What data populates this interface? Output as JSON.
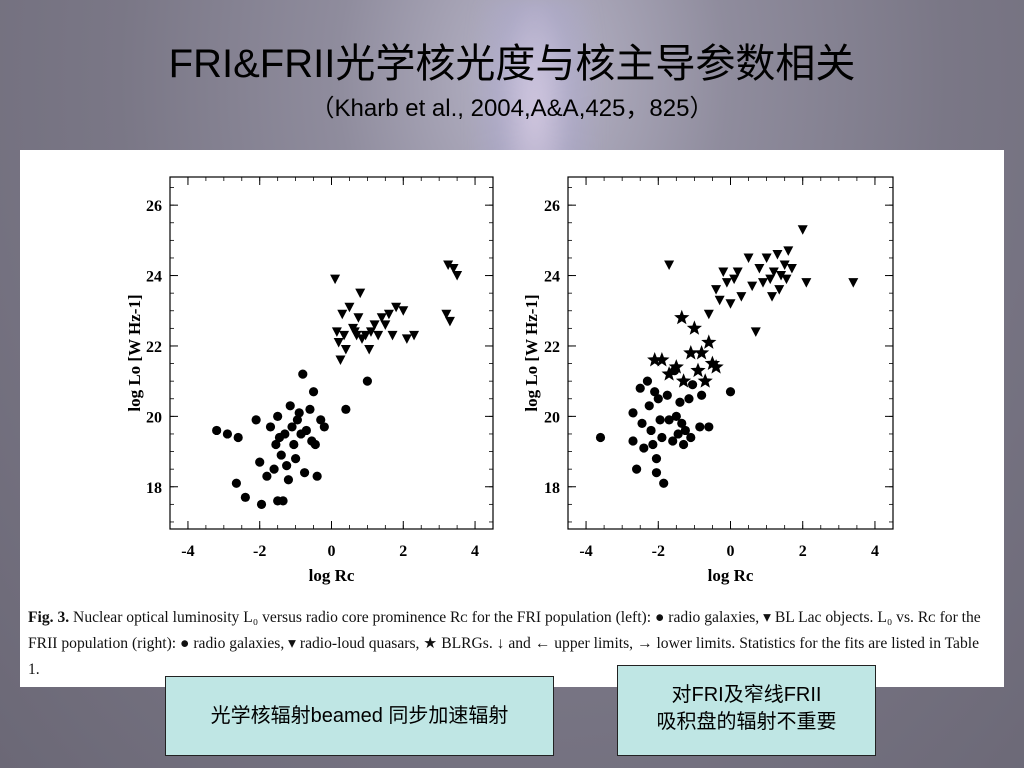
{
  "slide": {
    "title": "FRI&FRII光学核光度与核主导参数相关",
    "subtitle": "（Kharb et al., 2004,A&A,425，825）"
  },
  "caption": {
    "label": "Fig. 3.",
    "text": " Nuclear optical luminosity L₀ versus radio core prominence Rᴄ for the FRI population (left): ● radio galaxies, ▾ BL Lac objects. L₀ vs. Rᴄ for the FRII population (right): ● radio galaxies, ▾ radio-loud quasars, ★ BLRGs. ↓ and ← upper limits, → lower limits. Statistics for the fits are listed in Table 1."
  },
  "notes": {
    "left": "光学核辐射beamed 同步加速辐射",
    "right_line1": "对FRI及窄线FRII",
    "right_line2": "吸积盘的辐射不重要"
  },
  "chart_data": [
    {
      "type": "scatter",
      "xlabel": "log Rc",
      "ylabel": "log Lo [W Hz-1]",
      "xlim": [
        -4.5,
        4.5
      ],
      "ylim": [
        16.8,
        26.8
      ],
      "xticks": [
        "-4",
        "-2",
        "0",
        "2",
        "4"
      ],
      "yticks": [
        "18",
        "20",
        "22",
        "24",
        "26"
      ],
      "series": [
        {
          "marker": "circle",
          "points": [
            [
              -3.2,
              19.6
            ],
            [
              -2.9,
              19.5
            ],
            [
              -2.6,
              19.4
            ],
            [
              -2.65,
              18.1
            ],
            [
              -2.4,
              17.7
            ],
            [
              -2.1,
              19.9
            ],
            [
              -2,
              18.7
            ],
            [
              -1.95,
              17.5
            ],
            [
              -1.8,
              18.3
            ],
            [
              -1.7,
              19.7
            ],
            [
              -1.6,
              18.5
            ],
            [
              -1.55,
              19.2
            ],
            [
              -1.5,
              17.6
            ],
            [
              -1.5,
              20
            ],
            [
              -1.45,
              19.4
            ],
            [
              -1.4,
              18.9
            ],
            [
              -1.35,
              17.6
            ],
            [
              -1.3,
              19.5
            ],
            [
              -1.25,
              18.6
            ],
            [
              -1.2,
              18.2
            ],
            [
              -1.15,
              20.3
            ],
            [
              -1.1,
              19.7
            ],
            [
              -1.05,
              19.2
            ],
            [
              -1,
              18.8
            ],
            [
              -0.95,
              19.9
            ],
            [
              -0.9,
              20.1
            ],
            [
              -0.85,
              19.5
            ],
            [
              -0.8,
              21.2
            ],
            [
              -0.75,
              18.4
            ],
            [
              -0.7,
              19.6
            ],
            [
              -0.6,
              20.2
            ],
            [
              -0.55,
              19.3
            ],
            [
              -0.5,
              20.7
            ],
            [
              -0.45,
              19.2
            ],
            [
              -0.4,
              18.3
            ],
            [
              -0.3,
              19.9
            ],
            [
              -0.2,
              19.7
            ],
            [
              0.4,
              20.2
            ],
            [
              1,
              21
            ]
          ]
        },
        {
          "marker": "triangle-down",
          "points": [
            [
              0.1,
              23.9
            ],
            [
              0.15,
              22.4
            ],
            [
              0.2,
              22.1
            ],
            [
              0.25,
              21.6
            ],
            [
              0.3,
              22.9
            ],
            [
              0.35,
              22.3
            ],
            [
              0.4,
              21.9
            ],
            [
              0.5,
              23.1
            ],
            [
              0.6,
              22.5
            ],
            [
              0.65,
              22.4
            ],
            [
              0.7,
              22.3
            ],
            [
              0.75,
              22.8
            ],
            [
              0.8,
              23.5
            ],
            [
              0.85,
              22.2
            ],
            [
              0.95,
              22.3
            ],
            [
              1.05,
              21.9
            ],
            [
              1.1,
              22.4
            ],
            [
              1.2,
              22.6
            ],
            [
              1.3,
              22.3
            ],
            [
              1.4,
              22.8
            ],
            [
              1.5,
              22.6
            ],
            [
              1.6,
              22.9
            ],
            [
              1.7,
              22.3
            ],
            [
              1.8,
              23.1
            ],
            [
              2,
              23
            ],
            [
              2.1,
              22.2
            ],
            [
              2.3,
              22.3
            ],
            [
              3.2,
              22.9
            ],
            [
              3.25,
              24.3
            ],
            [
              3.3,
              22.7
            ],
            [
              3.4,
              24.2
            ],
            [
              3.5,
              24.0
            ]
          ]
        }
      ]
    },
    {
      "type": "scatter",
      "xlabel": "log Rc",
      "ylabel": "log Lo [W Hz-1]",
      "xlim": [
        -4.5,
        4.5
      ],
      "ylim": [
        16.8,
        26.8
      ],
      "xticks": [
        "-4",
        "-2",
        "0",
        "2",
        "4"
      ],
      "yticks": [
        "18",
        "20",
        "22",
        "24",
        "26"
      ],
      "series": [
        {
          "marker": "circle",
          "points": [
            [
              -3.6,
              19.4
            ],
            [
              -2.7,
              20.1
            ],
            [
              -2.7,
              19.3
            ],
            [
              -2.6,
              18.5
            ],
            [
              -2.5,
              20.8
            ],
            [
              -2.45,
              19.8
            ],
            [
              -2.4,
              19.1
            ],
            [
              -2.3,
              21
            ],
            [
              -2.25,
              20.3
            ],
            [
              -2.2,
              19.6
            ],
            [
              -2.15,
              19.2
            ],
            [
              -2.1,
              20.7
            ],
            [
              -2.05,
              18.8
            ],
            [
              -2.05,
              18.4
            ],
            [
              -2,
              20.5
            ],
            [
              -1.95,
              19.9
            ],
            [
              -1.9,
              19.4
            ],
            [
              -1.85,
              18.1
            ],
            [
              -1.75,
              20.6
            ],
            [
              -1.7,
              19.9
            ],
            [
              -1.6,
              19.3
            ],
            [
              -1.55,
              21.3
            ],
            [
              -1.5,
              20
            ],
            [
              -1.45,
              19.5
            ],
            [
              -1.4,
              20.4
            ],
            [
              -1.35,
              19.8
            ],
            [
              -1.3,
              19.2
            ],
            [
              -1.25,
              19.6
            ],
            [
              -1.15,
              20.5
            ],
            [
              -1.1,
              19.4
            ],
            [
              -1.05,
              20.9
            ],
            [
              -0.85,
              19.7
            ],
            [
              -0.8,
              20.6
            ],
            [
              -0.6,
              19.7
            ],
            [
              0,
              20.7
            ]
          ]
        },
        {
          "marker": "triangle-down",
          "points": [
            [
              -1.7,
              24.3
            ],
            [
              -0.6,
              22.9
            ],
            [
              -0.4,
              23.6
            ],
            [
              -0.3,
              23.3
            ],
            [
              -0.2,
              24.1
            ],
            [
              -0.1,
              23.8
            ],
            [
              0,
              23.2
            ],
            [
              0.1,
              23.9
            ],
            [
              0.2,
              24.1
            ],
            [
              0.3,
              23.4
            ],
            [
              0.5,
              24.5
            ],
            [
              0.6,
              23.7
            ],
            [
              0.7,
              22.4
            ],
            [
              0.8,
              24.2
            ],
            [
              0.9,
              23.8
            ],
            [
              1,
              24.5
            ],
            [
              1.1,
              23.9
            ],
            [
              1.15,
              23.4
            ],
            [
              1.2,
              24.1
            ],
            [
              1.3,
              24.6
            ],
            [
              1.35,
              23.6
            ],
            [
              1.4,
              24
            ],
            [
              1.5,
              24.3
            ],
            [
              1.55,
              23.9
            ],
            [
              1.6,
              24.7
            ],
            [
              1.7,
              24.2
            ],
            [
              2,
              25.3
            ],
            [
              2.1,
              23.8
            ],
            [
              3.4,
              23.8
            ]
          ]
        },
        {
          "marker": "star",
          "points": [
            [
              -2.1,
              21.6
            ],
            [
              -1.9,
              21.6
            ],
            [
              -1.7,
              21.2
            ],
            [
              -1.5,
              21.4
            ],
            [
              -1.3,
              21
            ],
            [
              -1.35,
              22.8
            ],
            [
              -1.1,
              21.8
            ],
            [
              -1,
              22.5
            ],
            [
              -0.9,
              21.3
            ],
            [
              -0.8,
              21.8
            ],
            [
              -0.7,
              21
            ],
            [
              -0.6,
              22.1
            ],
            [
              -0.5,
              21.5
            ],
            [
              -0.4,
              21.4
            ]
          ]
        }
      ]
    }
  ]
}
